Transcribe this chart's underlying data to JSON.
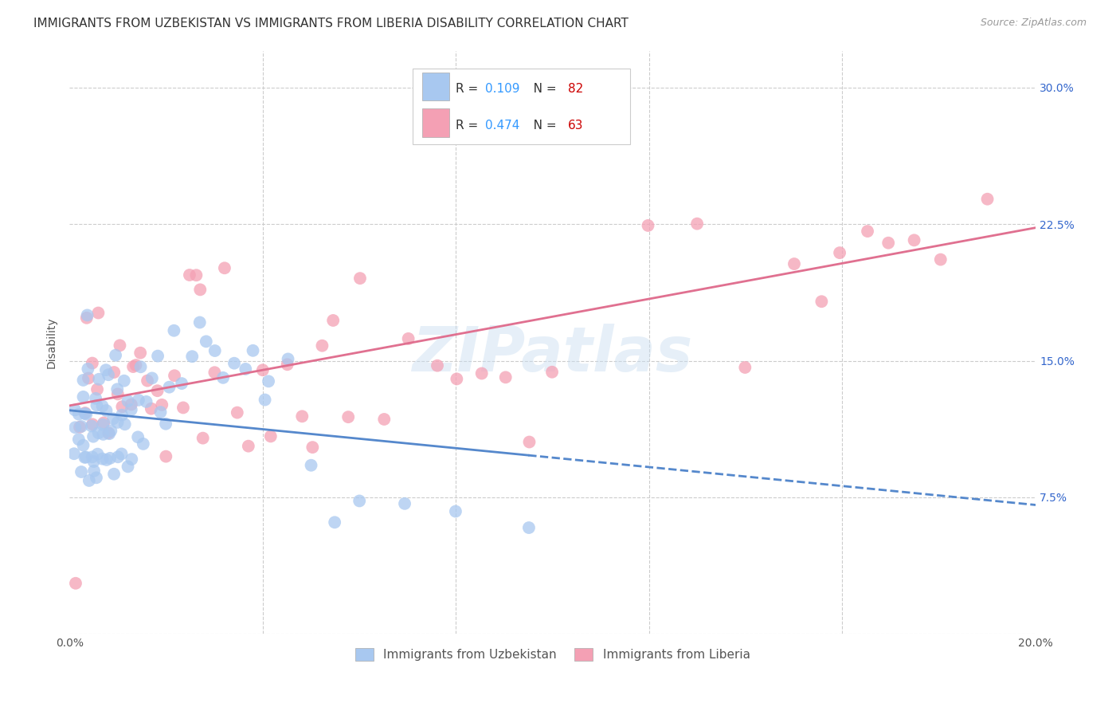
{
  "title": "IMMIGRANTS FROM UZBEKISTAN VS IMMIGRANTS FROM LIBERIA DISABILITY CORRELATION CHART",
  "source": "Source: ZipAtlas.com",
  "ylabel": "Disability",
  "xlim": [
    0.0,
    0.2
  ],
  "ylim": [
    0.0,
    0.32
  ],
  "x_ticks": [
    0.0,
    0.04,
    0.08,
    0.12,
    0.16,
    0.2
  ],
  "x_tick_labels": [
    "0.0%",
    "",
    "",
    "",
    "",
    "20.0%"
  ],
  "y_ticks": [
    0.0,
    0.075,
    0.15,
    0.225,
    0.3
  ],
  "y_tick_labels": [
    "",
    "7.5%",
    "15.0%",
    "22.5%",
    "30.0%"
  ],
  "series1_label": "Immigrants from Uzbekistan",
  "series2_label": "Immigrants from Liberia",
  "series1_color": "#a8c8f0",
  "series2_color": "#f4a0b4",
  "series1_R": "0.109",
  "series1_N": "82",
  "series2_R": "0.474",
  "series2_N": "63",
  "series1_line_color": "#5588cc",
  "series2_line_color": "#e07090",
  "watermark": "ZIPatlas",
  "background_color": "#ffffff",
  "grid_color": "#cccccc",
  "title_fontsize": 11,
  "seed": 42,
  "uzbekistan_x": [
    0.001,
    0.001,
    0.001,
    0.002,
    0.002,
    0.002,
    0.002,
    0.003,
    0.003,
    0.003,
    0.003,
    0.003,
    0.004,
    0.004,
    0.004,
    0.004,
    0.004,
    0.005,
    0.005,
    0.005,
    0.005,
    0.005,
    0.005,
    0.006,
    0.006,
    0.006,
    0.006,
    0.006,
    0.007,
    0.007,
    0.007,
    0.007,
    0.007,
    0.008,
    0.008,
    0.008,
    0.008,
    0.009,
    0.009,
    0.009,
    0.009,
    0.01,
    0.01,
    0.01,
    0.01,
    0.011,
    0.011,
    0.011,
    0.012,
    0.012,
    0.012,
    0.013,
    0.013,
    0.014,
    0.014,
    0.015,
    0.015,
    0.016,
    0.017,
    0.018,
    0.019,
    0.02,
    0.021,
    0.022,
    0.023,
    0.025,
    0.027,
    0.028,
    0.03,
    0.032,
    0.034,
    0.036,
    0.038,
    0.04,
    0.042,
    0.045,
    0.05,
    0.055,
    0.06,
    0.07,
    0.08,
    0.095
  ],
  "uzbekistan_y": [
    0.12,
    0.1,
    0.115,
    0.09,
    0.105,
    0.12,
    0.115,
    0.12,
    0.13,
    0.095,
    0.105,
    0.14,
    0.085,
    0.1,
    0.12,
    0.145,
    0.175,
    0.09,
    0.1,
    0.115,
    0.13,
    0.11,
    0.095,
    0.085,
    0.095,
    0.11,
    0.125,
    0.14,
    0.1,
    0.115,
    0.125,
    0.14,
    0.11,
    0.095,
    0.11,
    0.125,
    0.14,
    0.095,
    0.11,
    0.12,
    0.085,
    0.1,
    0.115,
    0.13,
    0.155,
    0.1,
    0.12,
    0.14,
    0.095,
    0.115,
    0.13,
    0.095,
    0.125,
    0.105,
    0.13,
    0.105,
    0.145,
    0.13,
    0.14,
    0.15,
    0.125,
    0.115,
    0.135,
    0.165,
    0.14,
    0.155,
    0.17,
    0.16,
    0.155,
    0.14,
    0.15,
    0.145,
    0.155,
    0.13,
    0.135,
    0.15,
    0.095,
    0.06,
    0.075,
    0.07,
    0.065,
    0.06
  ],
  "liberia_x": [
    0.001,
    0.002,
    0.003,
    0.003,
    0.004,
    0.005,
    0.005,
    0.006,
    0.006,
    0.007,
    0.008,
    0.009,
    0.01,
    0.01,
    0.011,
    0.012,
    0.013,
    0.014,
    0.015,
    0.016,
    0.017,
    0.018,
    0.019,
    0.02,
    0.022,
    0.024,
    0.025,
    0.026,
    0.027,
    0.028,
    0.03,
    0.032,
    0.035,
    0.037,
    0.04,
    0.042,
    0.045,
    0.048,
    0.05,
    0.052,
    0.055,
    0.058,
    0.06,
    0.065,
    0.07,
    0.075,
    0.08,
    0.085,
    0.09,
    0.095,
    0.1,
    0.11,
    0.12,
    0.13,
    0.14,
    0.15,
    0.155,
    0.16,
    0.165,
    0.17,
    0.175,
    0.18,
    0.19
  ],
  "liberia_y": [
    0.03,
    0.115,
    0.12,
    0.175,
    0.14,
    0.115,
    0.15,
    0.13,
    0.175,
    0.12,
    0.11,
    0.145,
    0.13,
    0.16,
    0.125,
    0.125,
    0.145,
    0.15,
    0.155,
    0.14,
    0.125,
    0.13,
    0.125,
    0.1,
    0.14,
    0.12,
    0.195,
    0.2,
    0.19,
    0.105,
    0.145,
    0.2,
    0.12,
    0.105,
    0.145,
    0.115,
    0.15,
    0.12,
    0.105,
    0.155,
    0.175,
    0.12,
    0.195,
    0.115,
    0.165,
    0.145,
    0.14,
    0.145,
    0.14,
    0.105,
    0.145,
    0.275,
    0.225,
    0.225,
    0.145,
    0.2,
    0.185,
    0.205,
    0.225,
    0.215,
    0.215,
    0.205,
    0.24
  ]
}
